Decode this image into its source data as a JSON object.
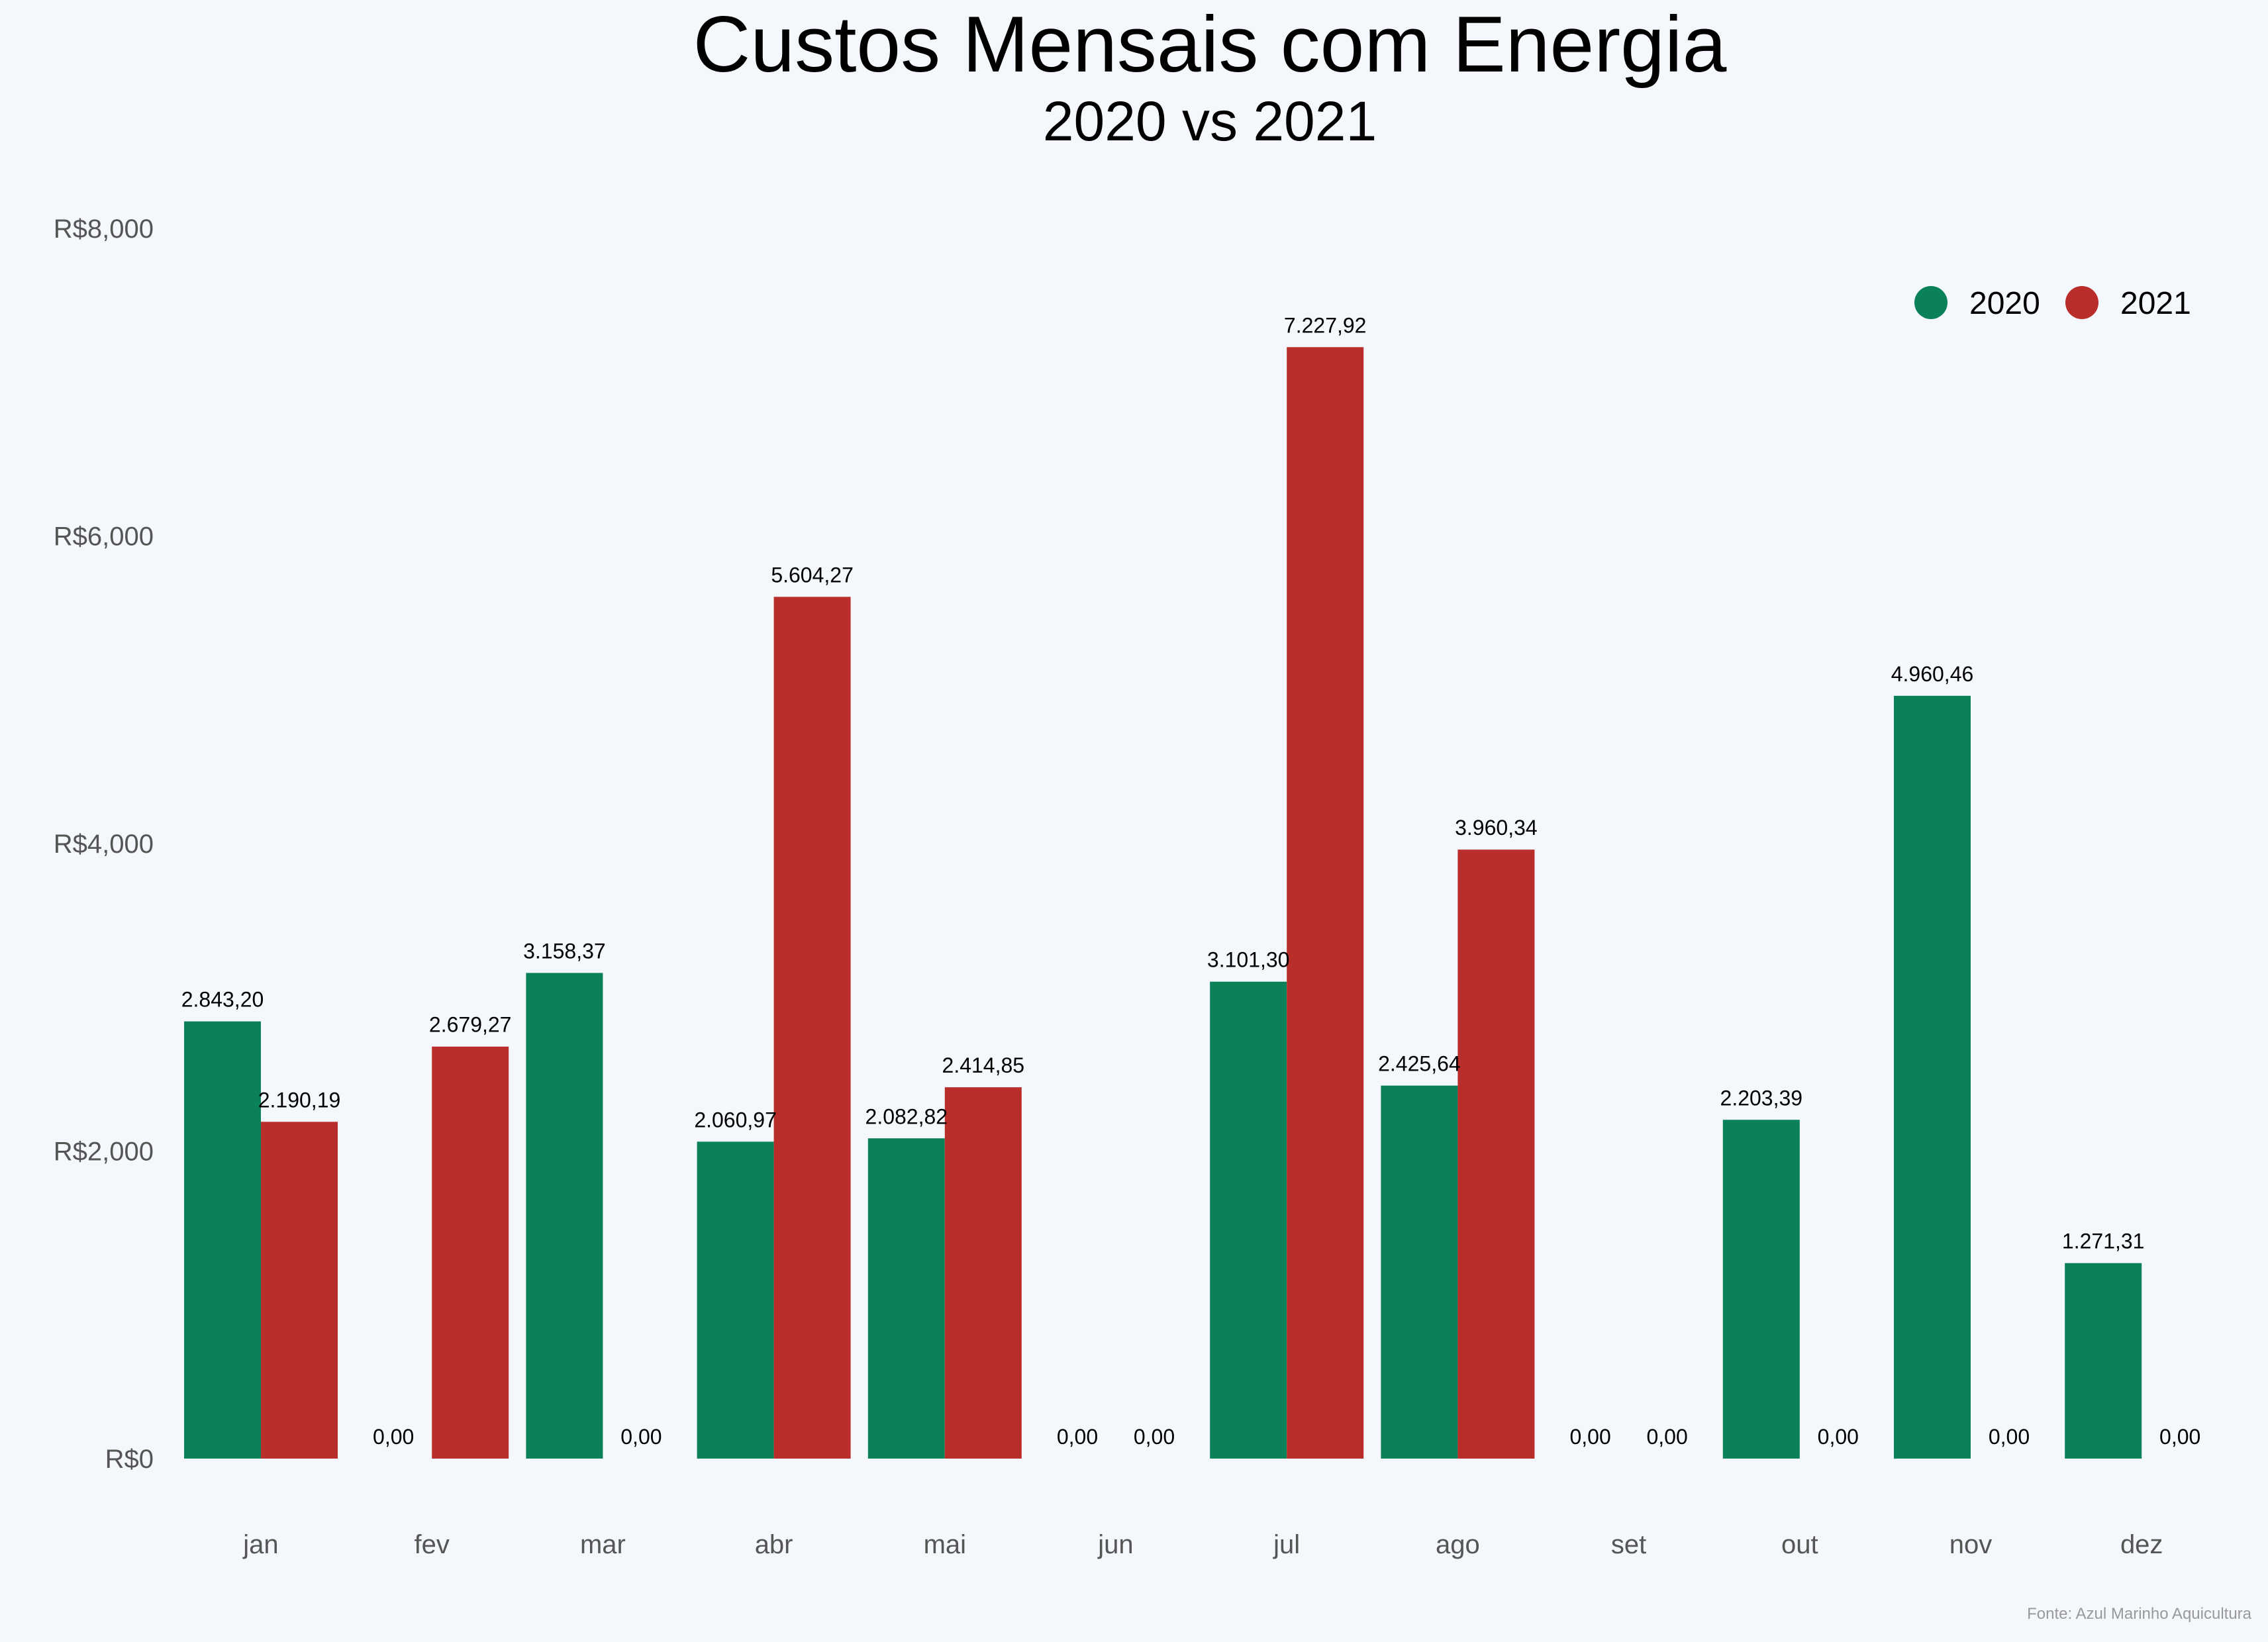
{
  "chart_data": {
    "type": "bar",
    "title": "Custos Mensais com Energia",
    "subtitle": "2020 vs 2021",
    "source": "Fonte: Azul Marinho Aquicultura",
    "categories": [
      "jan",
      "fev",
      "mar",
      "abr",
      "mai",
      "jun",
      "jul",
      "ago",
      "set",
      "out",
      "nov",
      "dez"
    ],
    "series": [
      {
        "name": "2020",
        "color": "#0a8159",
        "values": [
          2843.2,
          0,
          3158.37,
          2060.97,
          2082.82,
          0,
          3101.3,
          2425.64,
          0,
          2203.39,
          4960.46,
          1271.31
        ],
        "labels": [
          "2.843,20",
          "0,00",
          "3.158,37",
          "2.060,97",
          "2.082,82",
          "0,00",
          "3.101,30",
          "2.425,64",
          "0,00",
          "2.203,39",
          "4.960,46",
          "1.271,31"
        ]
      },
      {
        "name": "2021",
        "color": "#b92e2b",
        "values": [
          2190.19,
          2679.27,
          0,
          5604.27,
          2414.85,
          0,
          7227.92,
          3960.34,
          0,
          0,
          0,
          0
        ],
        "labels": [
          "2.190,19",
          "2.679,27",
          "0,00",
          "5.604,27",
          "2.414,85",
          "0,00",
          "7.227,92",
          "3.960,34",
          "0,00",
          "0,00",
          "0,00",
          "0,00"
        ]
      }
    ],
    "ylim": [
      0,
      8000
    ],
    "yticks": [
      0,
      2000,
      4000,
      6000,
      8000
    ],
    "ytick_labels": [
      "R$0",
      "R$2,000",
      "R$4,000",
      "R$6,000",
      "R$8,000"
    ],
    "grid": false,
    "legend_position": "top-right"
  }
}
